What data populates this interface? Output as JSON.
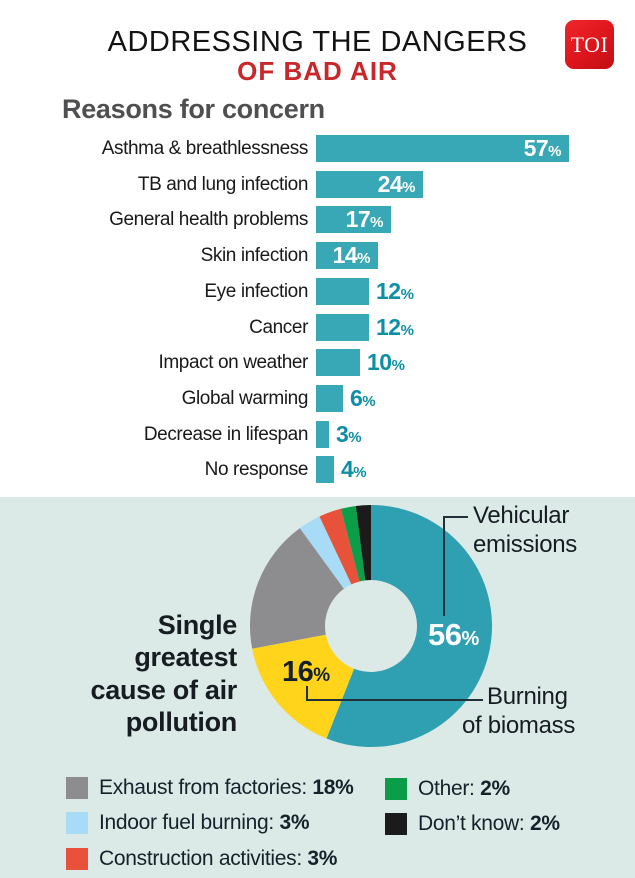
{
  "header": {
    "title": "ADDRESSING THE DANGERS",
    "subtitle": "OF BAD AIR",
    "logo_text": "TOI"
  },
  "bar_section": {
    "heading": "Reasons for concern"
  },
  "chart_data": [
    {
      "type": "bar",
      "title": "Reasons for concern",
      "orientation": "horizontal",
      "unit": "%",
      "categories": [
        "Asthma & breathlessness",
        "TB and lung infection",
        "General health problems",
        "Skin infection",
        "Eye infection",
        "Cancer",
        "Impact on weather",
        "Global warming",
        "Decrease in lifespan",
        "No response"
      ],
      "values": [
        57,
        24,
        17,
        14,
        12,
        12,
        10,
        6,
        3,
        4
      ],
      "xlim": [
        0,
        60
      ],
      "grid": false,
      "bar_color": "#38A7B6",
      "value_label_inside_color": "#FFFFFF",
      "value_label_outside_color": "#0D8FA4"
    },
    {
      "type": "pie",
      "subtype": "donut",
      "title": "Single greatest cause of air pollution",
      "start_angle": "12 o'clock, clockwise",
      "slices": [
        {
          "label": "Vehicular emissions",
          "value": 56,
          "color": "#2FA0B1",
          "on_chart_label": "56%"
        },
        {
          "label": "Burning of biomass",
          "value": 16,
          "color": "#FFD41A",
          "on_chart_label": "16%"
        },
        {
          "label": "Exhaust from factories",
          "value": 18,
          "color": "#8D8D8F"
        },
        {
          "label": "Indoor fuel burning",
          "value": 3,
          "color": "#A7DBF6"
        },
        {
          "label": "Construction activities",
          "value": 3,
          "color": "#E8513A"
        },
        {
          "label": "Other",
          "value": 2,
          "color": "#0C9D49"
        },
        {
          "label": "Don’t know",
          "value": 2,
          "color": "#1B1B1B"
        }
      ],
      "legend_position": "bottom"
    }
  ],
  "donut_section": {
    "caption": "Single\ngreatest\ncause of air\npollution",
    "big_label": {
      "num": "56",
      "sym": "%"
    },
    "small_label": {
      "num": "16",
      "sym": "%"
    },
    "callout_vehicular": "Vehicular\nemissions",
    "callout_biomass": {
      "line1": "Burning",
      "line2": "of biomass"
    }
  },
  "legend": {
    "column1": [
      {
        "label": "Exhaust from factories",
        "value": "18%",
        "color": "#8D8D8F"
      },
      {
        "label": "Indoor fuel burning",
        "value": "3%",
        "color": "#A7DBF6"
      },
      {
        "label": "Construction activities",
        "value": "3%",
        "color": "#E8513A"
      }
    ],
    "column2": [
      {
        "label": "Other",
        "value": "2%",
        "color": "#0C9D49"
      },
      {
        "label": "Don’t know",
        "value": "2%",
        "color": "#1B1B1B"
      }
    ]
  },
  "colors": {
    "page_background": "#FFFFFF",
    "panel_background": "#DBEAE6",
    "accent_red": "#C8272B",
    "logo_red": "#DD151C",
    "bar_teal": "#38A7B6",
    "donut_teal": "#2FA0B1",
    "heading_gray": "#4F4F51",
    "text_dark": "#161C22"
  }
}
